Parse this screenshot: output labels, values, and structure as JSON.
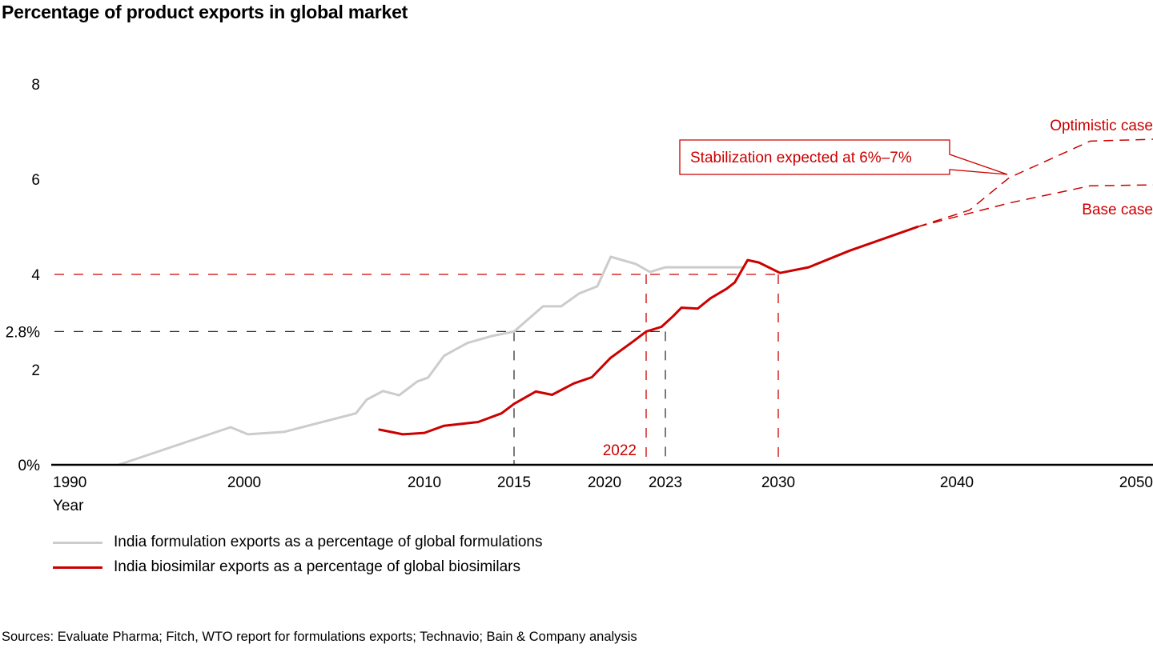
{
  "title": "Percentage of product exports in global market",
  "sources": "Sources: Evaluate Pharma; Fitch, WTO report for formulations exports; Technavio; Bain & Company analysis",
  "legend": [
    {
      "label": "India formulation exports as a percentage of global formulations",
      "color": "#cccccc"
    },
    {
      "label": "India biosimilar exports as a percentage of global biosimilars",
      "color": "#cc0000"
    }
  ],
  "chart_data": {
    "type": "line",
    "title": "Percentage of product exports in global market",
    "xlabel": "Year",
    "ylabel": "",
    "x_ticks": [
      "1990",
      "2000",
      "2010",
      "2015",
      "2020",
      "2023",
      "2030",
      "2040",
      "2050"
    ],
    "y_ticks": [
      "0%",
      "2",
      "2.8%",
      "4",
      "6",
      "8"
    ],
    "y_tick_values": [
      0,
      2,
      2.8,
      4,
      6,
      8
    ],
    "ylim": [
      0,
      8
    ],
    "xlim": [
      1990,
      2050
    ],
    "grid": false,
    "legend_position": "bottom-left",
    "series": [
      {
        "name": "India formulation exports as a percentage of global formulations",
        "color": "#cccccc",
        "style": "solid",
        "x": [
          1992.6,
          1999.2,
          2000.2,
          2002.2,
          2006.2,
          2006.8,
          2007.7,
          2008.6,
          2009.6,
          2010.2,
          2011.1,
          2012.4,
          2013.8,
          2015,
          2016.6,
          2017.6,
          2018.6,
          2019.6,
          2020.3,
          2021.5,
          2022.2,
          2023.0,
          2027.7
        ],
        "values": [
          0,
          0.79,
          0.64,
          0.69,
          1.08,
          1.37,
          1.55,
          1.46,
          1.75,
          1.83,
          2.29,
          2.56,
          2.71,
          2.8,
          3.33,
          3.33,
          3.6,
          3.75,
          4.37,
          4.22,
          4.05,
          4.15,
          4.15
        ]
      },
      {
        "name": "India biosimilar exports as a percentage of global biosimilars",
        "color": "#cc0000",
        "style": "solid",
        "x": [
          2007.5,
          2008.8,
          2010.0,
          2011.1,
          2013.0,
          2014.3,
          2015.0,
          2016.2,
          2017.1,
          2018.3,
          2019.3,
          2020.3,
          2021.4,
          2022.0,
          2022.8,
          2023.5,
          2024.0,
          2025.0,
          2025.8,
          2026.8,
          2027.3,
          2028.1,
          2028.8,
          2030.1,
          2031.7,
          2034.0,
          2037.8
        ],
        "values": [
          0.74,
          0.64,
          0.67,
          0.82,
          0.9,
          1.08,
          1.28,
          1.54,
          1.47,
          1.71,
          1.84,
          2.25,
          2.6,
          2.8,
          2.9,
          3.13,
          3.3,
          3.28,
          3.5,
          3.7,
          3.83,
          4.3,
          4.25,
          4.03,
          4.15,
          4.5,
          5.0
        ]
      },
      {
        "name": "Optimistic case",
        "color": "#cc0000",
        "style": "dashed",
        "x": [
          2037.8,
          2040.7,
          2042.9,
          2047.4,
          2051
        ],
        "values": [
          5.0,
          5.35,
          6.03,
          6.8,
          6.84
        ]
      },
      {
        "name": "Base case",
        "color": "#cc0000",
        "style": "dashed",
        "x": [
          2037.8,
          2042.9,
          2047.4,
          2051
        ],
        "values": [
          5.0,
          5.5,
          5.86,
          5.88
        ]
      }
    ],
    "reference_lines": [
      {
        "type": "horizontal",
        "value": 4,
        "color": "#cc0000",
        "style": "dashed",
        "x_end": 2030
      },
      {
        "type": "horizontal",
        "value": 2.8,
        "color": "#333333",
        "style": "dashed",
        "x_end": 2023
      },
      {
        "type": "vertical",
        "x": 2015,
        "y_end": 2.8,
        "color": "#333333",
        "style": "dashed"
      },
      {
        "type": "vertical",
        "x": 2023,
        "y_end": 2.8,
        "color": "#333333",
        "style": "dashed"
      },
      {
        "type": "vertical",
        "x": 2022,
        "y_end": 4,
        "color": "#cc0000",
        "style": "dashed"
      },
      {
        "type": "vertical",
        "x": 2030,
        "y_end": 4,
        "color": "#cc0000",
        "style": "dashed"
      }
    ],
    "annotations": [
      {
        "text": "2022",
        "color": "#cc0000",
        "near_x": 2022
      },
      {
        "text": "Stabilization expected at 6%–7%",
        "color": "#cc0000",
        "boxed": true
      },
      {
        "text": "Optimistic case",
        "color": "#cc0000"
      },
      {
        "text": "Base case",
        "color": "#cc0000"
      }
    ]
  }
}
